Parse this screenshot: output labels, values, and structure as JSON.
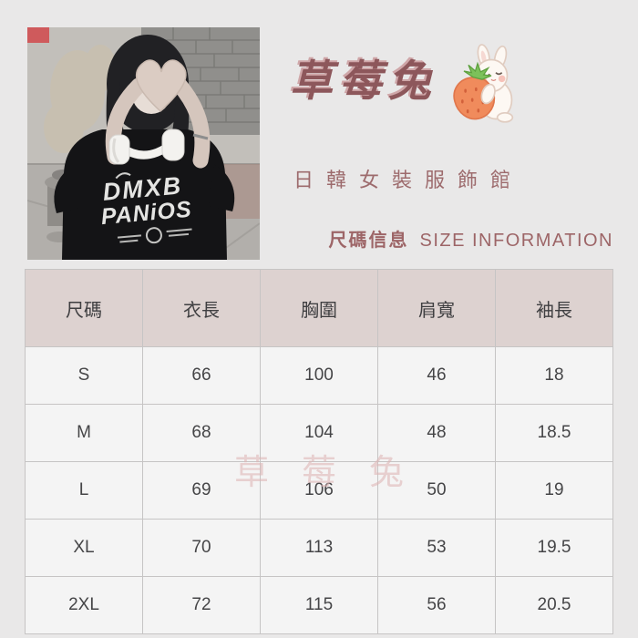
{
  "brand": {
    "title": "草莓兔",
    "subtitle": "日韓女裝服飾館",
    "section_cn": "尺碼信息",
    "section_en": "SIZE INFORMATION"
  },
  "icons": {
    "brand_logo": "rabbit-hugging-strawberry-icon"
  },
  "photo": {
    "description": "model in oversized black t-shirt making heart hands, white headphones",
    "shirt_line1": "DMXB",
    "shirt_line2": "PANiOS"
  },
  "watermark": "草莓兔",
  "size_table": {
    "headers": [
      "尺碼",
      "衣長",
      "胸圍",
      "肩寬",
      "袖長"
    ],
    "rows": [
      {
        "size": "S",
        "values": [
          "66",
          "100",
          "46",
          "18"
        ]
      },
      {
        "size": "M",
        "values": [
          "68",
          "104",
          "48",
          "18.5"
        ]
      },
      {
        "size": "L",
        "values": [
          "69",
          "106",
          "50",
          "19"
        ]
      },
      {
        "size": "XL",
        "values": [
          "70",
          "113",
          "53",
          "19.5"
        ]
      },
      {
        "size": "2XL",
        "values": [
          "72",
          "115",
          "56",
          "20.5"
        ]
      }
    ]
  },
  "colors": {
    "page_bg": "#e9e8e8",
    "brand_maroon": "#8d575b",
    "brand_rose": "#9d6b6d",
    "table_header_bg": "#ddd2d0",
    "table_cell_bg": "#f4f4f4",
    "table_border": "#c6c4c4",
    "watermark_pink": "#debbbb",
    "strawberry_orange": "#f08b5c",
    "leaf_green": "#7cc15a"
  }
}
